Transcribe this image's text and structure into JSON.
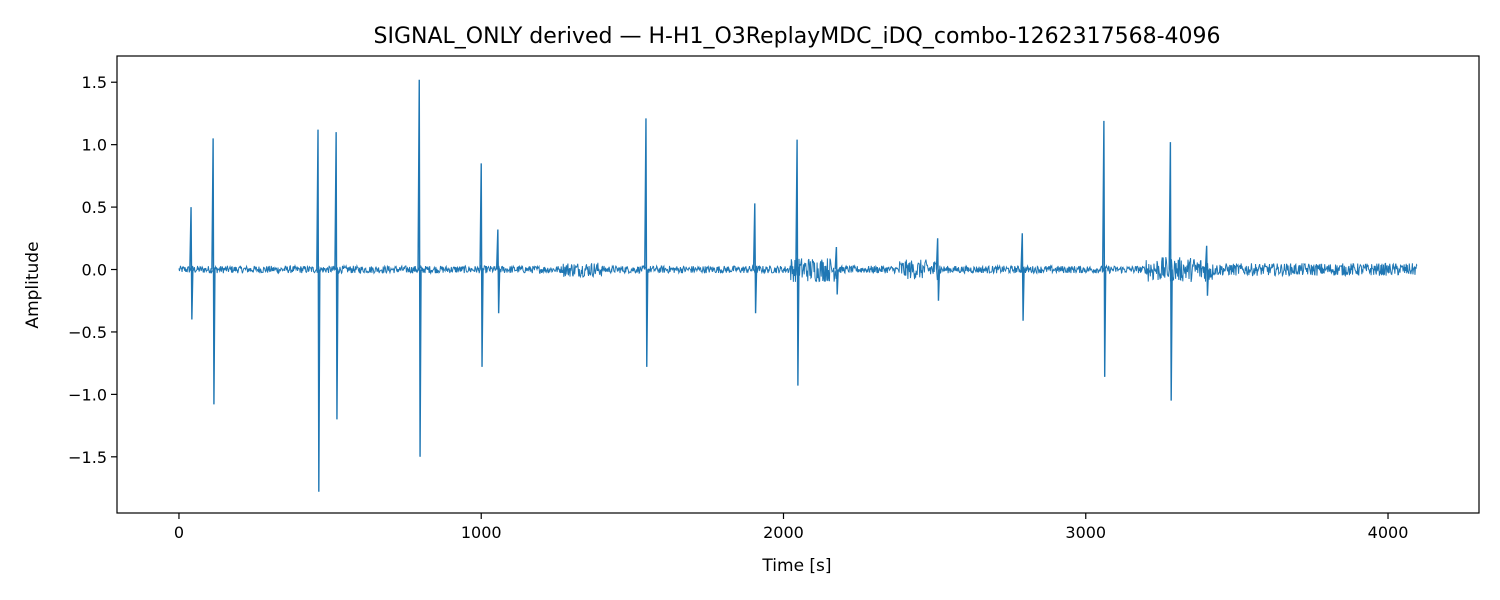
{
  "chart_data": {
    "type": "line",
    "title": "SIGNAL_ONLY derived — H-H1_O3ReplayMDC_iDQ_combo-1262317568-4096",
    "xlabel": "Time [s]",
    "ylabel": "Amplitude",
    "xlim": [
      -205,
      4301
    ],
    "ylim": [
      -1.95,
      1.71
    ],
    "xticks": [
      0,
      1000,
      2000,
      3000,
      4000
    ],
    "xtick_labels": [
      "0",
      "1000",
      "2000",
      "3000",
      "4000"
    ],
    "yticks": [
      -1.5,
      -1.0,
      -0.5,
      0.0,
      0.5,
      1.0,
      1.5
    ],
    "ytick_labels": [
      "−1.5",
      "−1.0",
      "−0.5",
      "0.0",
      "0.5",
      "1.0",
      "1.5"
    ],
    "grid": false,
    "series": [
      {
        "color": "#1f77b4",
        "x_range": [
          0,
          4096
        ],
        "baseline_amplitude": 0.03,
        "noisy_segments": [
          {
            "x": [
              1270,
              1400
            ],
            "amplitude": 0.06
          },
          {
            "x": [
              2020,
              2180
            ],
            "amplitude": 0.1
          },
          {
            "x": [
              2380,
              2520
            ],
            "amplitude": 0.08
          },
          {
            "x": [
              3200,
              3420
            ],
            "amplitude": 0.1
          },
          {
            "x": [
              3420,
              4096
            ],
            "amplitude": 0.05
          }
        ],
        "spikes": [
          {
            "x": 40,
            "max": 0.5,
            "min": -0.4
          },
          {
            "x": 113,
            "max": 1.05,
            "min": -1.08
          },
          {
            "x": 460,
            "max": 1.12,
            "min": -1.78
          },
          {
            "x": 520,
            "max": 1.1,
            "min": -1.2
          },
          {
            "x": 795,
            "max": 1.52,
            "min": -1.5
          },
          {
            "x": 1000,
            "max": 0.85,
            "min": -0.78
          },
          {
            "x": 1055,
            "max": 0.32,
            "min": -0.35
          },
          {
            "x": 1545,
            "max": 1.21,
            "min": -0.78
          },
          {
            "x": 1905,
            "max": 0.53,
            "min": -0.35
          },
          {
            "x": 2045,
            "max": 1.04,
            "min": -0.93
          },
          {
            "x": 2175,
            "max": 0.18,
            "min": -0.2
          },
          {
            "x": 2510,
            "max": 0.25,
            "min": -0.25
          },
          {
            "x": 2790,
            "max": 0.29,
            "min": -0.41
          },
          {
            "x": 3060,
            "max": 1.19,
            "min": -0.86
          },
          {
            "x": 3280,
            "max": 1.02,
            "min": -1.05
          },
          {
            "x": 3400,
            "max": 0.19,
            "min": -0.21
          }
        ]
      }
    ]
  }
}
